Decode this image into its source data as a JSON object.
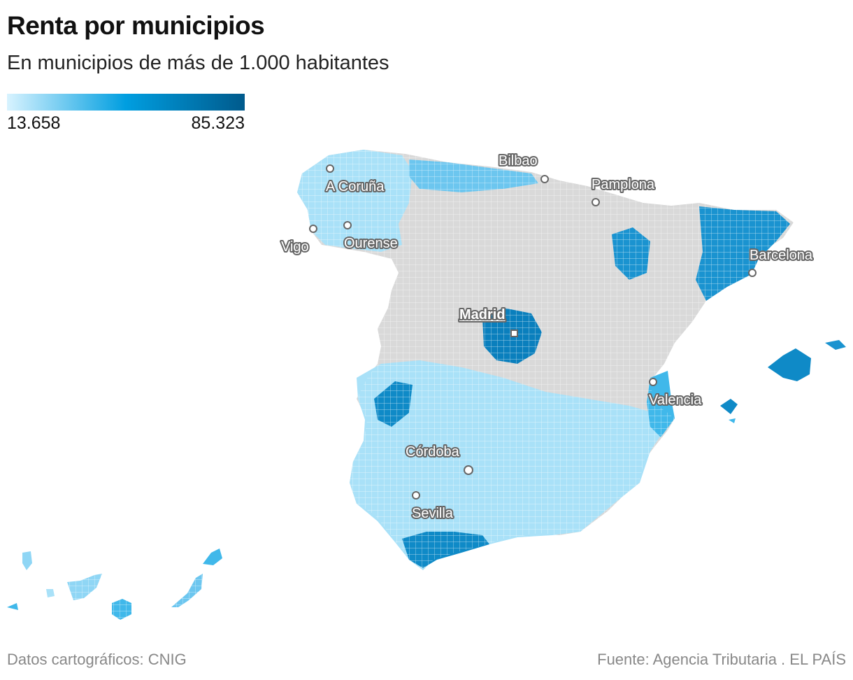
{
  "title": "Renta por municipios",
  "subtitle": "En municipios de más de 1.000 habitantes",
  "legend": {
    "min_label": "13.658",
    "max_label": "85.323",
    "colors": [
      "#d8f3ff",
      "#009ee0",
      "#005a8c"
    ]
  },
  "colors": {
    "no_data": "#d9d9d9",
    "low": "#c9ecfb",
    "mid_low": "#8fd6f5",
    "mid": "#40b8ea",
    "mid_high": "#0f8ac7",
    "high": "#006aa3",
    "label_halo": "#666666",
    "footer": "#888888"
  },
  "cities": [
    {
      "name": "A Coruña",
      "capital": false
    },
    {
      "name": "Bilbao",
      "capital": false
    },
    {
      "name": "Pamplona",
      "capital": false
    },
    {
      "name": "Vigo",
      "capital": false
    },
    {
      "name": "Ourense",
      "capital": false
    },
    {
      "name": "Barcelona",
      "capital": false
    },
    {
      "name": "Madrid",
      "capital": true
    },
    {
      "name": "Valencia",
      "capital": false
    },
    {
      "name": "Córdoba",
      "capital": false
    },
    {
      "name": "Sevilla",
      "capital": false
    }
  ],
  "footer": {
    "left": "Datos cartográficos: CNIG",
    "right": "Fuente: Agencia Tributaria . EL PAÍS"
  }
}
